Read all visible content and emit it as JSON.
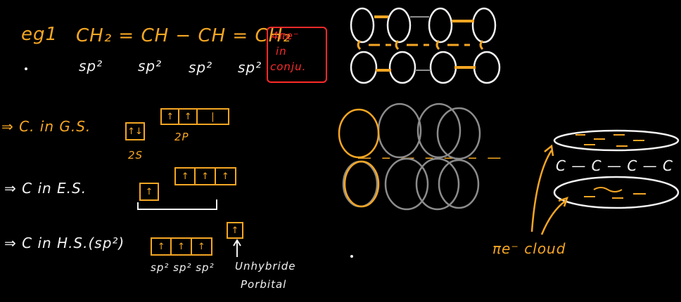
{
  "example_label": "eg1",
  "molecule": "CH₂ = CH − CH = CH₂",
  "hybrid_labels": [
    "sp²",
    "sp²",
    "sp²",
    "sp²"
  ],
  "pi_note": {
    "line1": "4πe⁻",
    "line2": "in",
    "line3": "conju."
  },
  "ground_state": {
    "label": "⇒ C. in G.S.",
    "s_box": "↑↓",
    "s_label": "2S",
    "p_boxes": [
      "↑",
      "↑",
      "|"
    ],
    "p_label": "2P"
  },
  "excited_state": {
    "label": "⇒ C in E.S.",
    "s_box": "↑",
    "p_boxes": [
      "↑",
      "↑",
      "↑"
    ]
  },
  "hybrid_state": {
    "label": "⇒ C in H.S.(sp²)",
    "sp_boxes": [
      "↑",
      "↑",
      "↑"
    ],
    "sp_labels": "sp² sp² sp²",
    "unhybrid_box": "↑",
    "unhybrid_line1": "Unhybride",
    "unhybrid_line2": "Porbital"
  },
  "chain_middle": "— ‒ — ‒ — ‒ —",
  "chain_right": "C — C — C — C",
  "cloud_label": "πe⁻ cloud",
  "colors": {
    "orange": "#f5a623",
    "white": "#f2f2f2",
    "red": "#ff2a2a",
    "grey": "#8c8c8c",
    "background": "#000000"
  }
}
